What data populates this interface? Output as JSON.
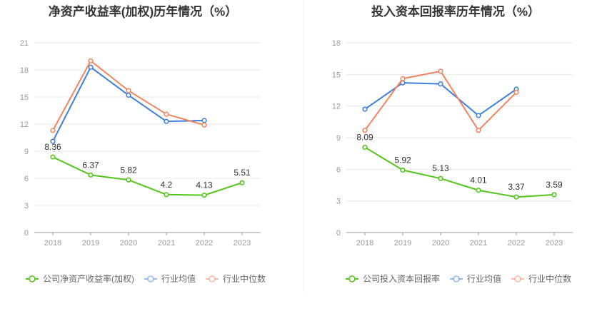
{
  "colors": {
    "company": "#52c41a",
    "average": "#3f7fe0",
    "median": "#f4845f",
    "axis": "#999999",
    "grid": "#e8e8e8",
    "divider": "#eeeeee"
  },
  "chart_data": [
    {
      "type": "line",
      "title": "净资产收益率(加权)历年情况（%）",
      "categories": [
        "2018",
        "2019",
        "2020",
        "2021",
        "2022",
        "2023"
      ],
      "ylim": [
        0,
        21
      ],
      "yticks": [
        0,
        3,
        6,
        9,
        12,
        15,
        18,
        21
      ],
      "grid": true,
      "legend_position": "bottom-left",
      "series": [
        {
          "name": "公司净资产收益率(加权)",
          "role": "company",
          "values": [
            8.36,
            6.37,
            5.82,
            4.2,
            4.13,
            5.51
          ],
          "labels": [
            "8.36",
            "6.37",
            "5.82",
            "4.2",
            "4.13",
            "5.51"
          ]
        },
        {
          "name": "行业均值",
          "role": "average",
          "values": [
            10.1,
            18.3,
            15.2,
            12.3,
            12.4,
            null
          ]
        },
        {
          "name": "行业中位数",
          "role": "median",
          "values": [
            11.3,
            19.0,
            15.7,
            13.1,
            11.9,
            null
          ]
        }
      ]
    },
    {
      "type": "line",
      "title": "投入资本回报率历年情况（%）",
      "categories": [
        "2018",
        "2019",
        "2020",
        "2021",
        "2022",
        "2023"
      ],
      "ylim": [
        0,
        18
      ],
      "yticks": [
        0,
        3,
        6,
        9,
        12,
        15,
        18
      ],
      "grid": true,
      "legend_position": "bottom-left",
      "series": [
        {
          "name": "公司投入资本回报率",
          "role": "company",
          "values": [
            8.09,
            5.92,
            5.13,
            4.01,
            3.37,
            3.59
          ],
          "labels": [
            "8.09",
            "5.92",
            "5.13",
            "4.01",
            "3.37",
            "3.59"
          ]
        },
        {
          "name": "行业均值",
          "role": "average",
          "values": [
            11.7,
            14.2,
            14.1,
            11.1,
            13.6,
            null
          ]
        },
        {
          "name": "行业中位数",
          "role": "median",
          "values": [
            9.7,
            14.6,
            15.3,
            9.7,
            13.3,
            null
          ]
        }
      ]
    }
  ]
}
